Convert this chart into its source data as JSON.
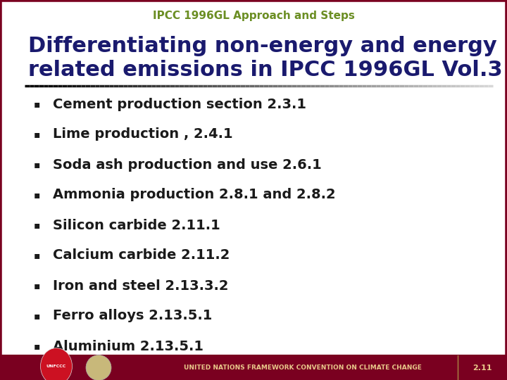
{
  "subtitle": "IPCC 1996GL Approach and Steps",
  "title_line1": "Differentiating non-energy and energy",
  "title_line2": "related emissions in IPCC 1996GL Vol.3",
  "subtitle_color": "#6b8e23",
  "title_color": "#1a1a6e",
  "bg_color": "#ffffff",
  "bullet_color": "#1a1a1a",
  "bullet_items": [
    "Cement production section 2.3.1",
    "Lime production , 2.4.1",
    "Soda ash production and use 2.6.1",
    "Ammonia production 2.8.1 and 2.8.2",
    "Silicon carbide 2.11.1",
    "Calcium carbide 2.11.2",
    "Iron and steel 2.13.3.2",
    "Ferro alloys 2.13.5.1",
    "Aluminium 2.13.5.1"
  ],
  "footer_bg": "#7a0020",
  "footer_text": "UNITED NATIONS FRAMEWORK CONVENTION ON CLIMATE CHANGE",
  "footer_text_color": "#e8c88a",
  "slide_number": "2.11",
  "border_color": "#7a0020",
  "divider_gradient_left": "#2a2a2a",
  "divider_gradient_right": "#cccccc",
  "subtitle_fontsize": 11,
  "title_fontsize": 22,
  "bullet_fontsize": 14
}
